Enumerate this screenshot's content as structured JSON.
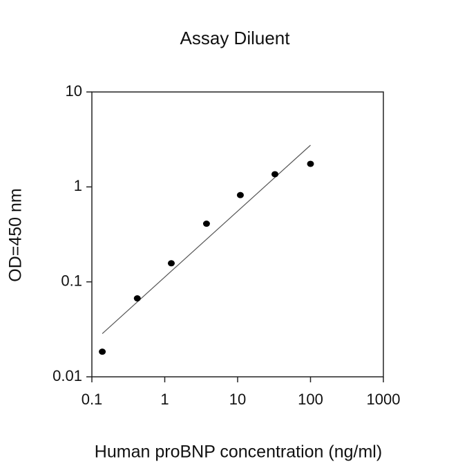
{
  "chart_data": {
    "type": "scatter",
    "title": "Assay Diluent",
    "x_label": "Human proBNP concentration (ng/ml)",
    "y_label": "OD=450 nm",
    "x": [
      0.139,
      0.42,
      1.23,
      3.74,
      10.9,
      32.5,
      100
    ],
    "values": [
      0.0184,
      0.067,
      0.157,
      0.41,
      0.82,
      1.36,
      1.75
    ],
    "color": "#000000",
    "trendline": {
      "x": [
        0.139,
        100
      ],
      "y": [
        0.0285,
        2.75
      ],
      "color": "#555555"
    },
    "xscale": "log",
    "yscale": "log",
    "xlim": [
      0.1,
      1000
    ],
    "ylim": [
      0.01,
      10
    ],
    "xticks": [
      0.1,
      1,
      10,
      100,
      1000
    ],
    "yticks": [
      0.01,
      0.1,
      1,
      10
    ],
    "grid": false
  }
}
